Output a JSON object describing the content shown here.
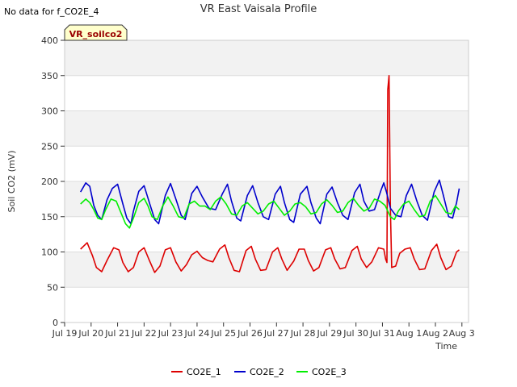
{
  "chart_data": {
    "type": "line",
    "title": "VR East Vaisala Profile",
    "top_left_note": "No data for f_CO2E_4",
    "badge_label": "VR_soilco2",
    "xlabel": "Time",
    "ylabel": "Soil CO2 (mV)",
    "x_domain": [
      0,
      15.25
    ],
    "ylim": [
      0,
      400
    ],
    "y_ticks": [
      0,
      50,
      100,
      150,
      200,
      250,
      300,
      350,
      400
    ],
    "x_ticks": [
      {
        "day": 0,
        "label": "Jul 19"
      },
      {
        "day": 1,
        "label": "Jul 20"
      },
      {
        "day": 2,
        "label": "Jul 21"
      },
      {
        "day": 3,
        "label": "Jul 22"
      },
      {
        "day": 4,
        "label": "Jul 23"
      },
      {
        "day": 5,
        "label": "Jul 24"
      },
      {
        "day": 6,
        "label": "Jul 25"
      },
      {
        "day": 7,
        "label": "Jul 26"
      },
      {
        "day": 8,
        "label": "Jul 27"
      },
      {
        "day": 9,
        "label": "Jul 28"
      },
      {
        "day": 10,
        "label": "Jul 29"
      },
      {
        "day": 11,
        "label": "Jul 30"
      },
      {
        "day": 12,
        "label": "Jul 31"
      },
      {
        "day": 13,
        "label": "Aug 1"
      },
      {
        "day": 14,
        "label": "Aug 2"
      },
      {
        "day": 15,
        "label": "Aug 3"
      }
    ],
    "grid": true,
    "legend_position": "bottom-center",
    "series": [
      {
        "name": "CO2E_1",
        "color": "#dd0000",
        "points": [
          [
            0.6,
            104
          ],
          [
            0.85,
            113
          ],
          [
            1.05,
            95
          ],
          [
            1.2,
            78
          ],
          [
            1.4,
            72
          ],
          [
            1.6,
            88
          ],
          [
            1.85,
            106
          ],
          [
            2.05,
            103
          ],
          [
            2.2,
            85
          ],
          [
            2.4,
            72
          ],
          [
            2.6,
            78
          ],
          [
            2.8,
            100
          ],
          [
            3.0,
            106
          ],
          [
            3.2,
            88
          ],
          [
            3.4,
            71
          ],
          [
            3.6,
            80
          ],
          [
            3.8,
            103
          ],
          [
            4.0,
            106
          ],
          [
            4.2,
            86
          ],
          [
            4.4,
            73
          ],
          [
            4.6,
            82
          ],
          [
            4.8,
            96
          ],
          [
            5.0,
            101
          ],
          [
            5.2,
            92
          ],
          [
            5.4,
            88
          ],
          [
            5.6,
            86
          ],
          [
            5.85,
            104
          ],
          [
            6.05,
            110
          ],
          [
            6.2,
            92
          ],
          [
            6.4,
            74
          ],
          [
            6.6,
            72
          ],
          [
            6.85,
            102
          ],
          [
            7.05,
            108
          ],
          [
            7.2,
            90
          ],
          [
            7.4,
            74
          ],
          [
            7.6,
            75
          ],
          [
            7.85,
            100
          ],
          [
            8.05,
            106
          ],
          [
            8.2,
            90
          ],
          [
            8.4,
            74
          ],
          [
            8.65,
            87
          ],
          [
            8.85,
            104
          ],
          [
            9.05,
            104
          ],
          [
            9.2,
            88
          ],
          [
            9.4,
            73
          ],
          [
            9.6,
            78
          ],
          [
            9.85,
            103
          ],
          [
            10.05,
            106
          ],
          [
            10.2,
            90
          ],
          [
            10.4,
            76
          ],
          [
            10.6,
            78
          ],
          [
            10.85,
            102
          ],
          [
            11.05,
            108
          ],
          [
            11.2,
            90
          ],
          [
            11.4,
            78
          ],
          [
            11.6,
            86
          ],
          [
            11.85,
            106
          ],
          [
            12.05,
            104
          ],
          [
            12.12,
            90
          ],
          [
            12.17,
            85
          ],
          [
            12.2,
            330
          ],
          [
            12.25,
            350
          ],
          [
            12.3,
            160
          ],
          [
            12.35,
            78
          ],
          [
            12.5,
            80
          ],
          [
            12.65,
            98
          ],
          [
            12.85,
            104
          ],
          [
            13.05,
            106
          ],
          [
            13.2,
            90
          ],
          [
            13.4,
            75
          ],
          [
            13.6,
            76
          ],
          [
            13.85,
            102
          ],
          [
            14.05,
            111
          ],
          [
            14.2,
            92
          ],
          [
            14.4,
            75
          ],
          [
            14.6,
            80
          ],
          [
            14.8,
            100
          ],
          [
            14.9,
            103
          ]
        ]
      },
      {
        "name": "CO2E_2",
        "color": "#0000cc",
        "points": [
          [
            0.6,
            185
          ],
          [
            0.8,
            198
          ],
          [
            0.95,
            193
          ],
          [
            1.1,
            166
          ],
          [
            1.25,
            152
          ],
          [
            1.4,
            146
          ],
          [
            1.6,
            174
          ],
          [
            1.8,
            190
          ],
          [
            2.0,
            196
          ],
          [
            2.2,
            168
          ],
          [
            2.35,
            148
          ],
          [
            2.5,
            140
          ],
          [
            2.6,
            158
          ],
          [
            2.8,
            186
          ],
          [
            3.0,
            194
          ],
          [
            3.2,
            170
          ],
          [
            3.4,
            146
          ],
          [
            3.55,
            140
          ],
          [
            3.8,
            180
          ],
          [
            4.0,
            197
          ],
          [
            4.2,
            175
          ],
          [
            4.4,
            152
          ],
          [
            4.55,
            146
          ],
          [
            4.8,
            183
          ],
          [
            5.0,
            193
          ],
          [
            5.2,
            178
          ],
          [
            5.45,
            162
          ],
          [
            5.7,
            160
          ],
          [
            5.95,
            182
          ],
          [
            6.15,
            196
          ],
          [
            6.3,
            172
          ],
          [
            6.5,
            148
          ],
          [
            6.65,
            144
          ],
          [
            6.9,
            180
          ],
          [
            7.1,
            194
          ],
          [
            7.3,
            170
          ],
          [
            7.5,
            150
          ],
          [
            7.7,
            146
          ],
          [
            7.95,
            182
          ],
          [
            8.15,
            193
          ],
          [
            8.3,
            170
          ],
          [
            8.5,
            146
          ],
          [
            8.65,
            142
          ],
          [
            8.9,
            182
          ],
          [
            9.15,
            193
          ],
          [
            9.3,
            170
          ],
          [
            9.5,
            148
          ],
          [
            9.65,
            140
          ],
          [
            9.9,
            182
          ],
          [
            10.1,
            192
          ],
          [
            10.3,
            170
          ],
          [
            10.5,
            152
          ],
          [
            10.7,
            146
          ],
          [
            10.95,
            184
          ],
          [
            11.15,
            196
          ],
          [
            11.3,
            172
          ],
          [
            11.5,
            158
          ],
          [
            11.7,
            160
          ],
          [
            11.95,
            188
          ],
          [
            12.05,
            198
          ],
          [
            12.15,
            185
          ],
          [
            12.3,
            162
          ],
          [
            12.5,
            152
          ],
          [
            12.7,
            150
          ],
          [
            12.9,
            180
          ],
          [
            13.1,
            196
          ],
          [
            13.3,
            172
          ],
          [
            13.5,
            152
          ],
          [
            13.7,
            145
          ],
          [
            13.95,
            185
          ],
          [
            14.15,
            202
          ],
          [
            14.3,
            180
          ],
          [
            14.5,
            150
          ],
          [
            14.65,
            148
          ],
          [
            14.8,
            170
          ],
          [
            14.9,
            190
          ]
        ]
      },
      {
        "name": "CO2E_3",
        "color": "#00ee00",
        "points": [
          [
            0.6,
            168
          ],
          [
            0.8,
            175
          ],
          [
            0.95,
            170
          ],
          [
            1.1,
            160
          ],
          [
            1.25,
            148
          ],
          [
            1.4,
            146
          ],
          [
            1.55,
            160
          ],
          [
            1.75,
            175
          ],
          [
            1.95,
            172
          ],
          [
            2.1,
            158
          ],
          [
            2.3,
            140
          ],
          [
            2.45,
            134
          ],
          [
            2.6,
            148
          ],
          [
            2.8,
            170
          ],
          [
            3.0,
            176
          ],
          [
            3.15,
            165
          ],
          [
            3.3,
            150
          ],
          [
            3.5,
            146
          ],
          [
            3.7,
            165
          ],
          [
            3.9,
            178
          ],
          [
            4.1,
            165
          ],
          [
            4.3,
            150
          ],
          [
            4.5,
            148
          ],
          [
            4.7,
            168
          ],
          [
            4.9,
            172
          ],
          [
            5.1,
            165
          ],
          [
            5.3,
            165
          ],
          [
            5.5,
            160
          ],
          [
            5.7,
            172
          ],
          [
            5.9,
            178
          ],
          [
            6.1,
            168
          ],
          [
            6.3,
            154
          ],
          [
            6.5,
            152
          ],
          [
            6.7,
            165
          ],
          [
            6.9,
            170
          ],
          [
            7.1,
            162
          ],
          [
            7.3,
            154
          ],
          [
            7.5,
            158
          ],
          [
            7.7,
            168
          ],
          [
            7.9,
            172
          ],
          [
            8.1,
            162
          ],
          [
            8.3,
            152
          ],
          [
            8.5,
            158
          ],
          [
            8.7,
            168
          ],
          [
            8.9,
            170
          ],
          [
            9.1,
            164
          ],
          [
            9.3,
            154
          ],
          [
            9.5,
            156
          ],
          [
            9.7,
            168
          ],
          [
            9.9,
            174
          ],
          [
            10.1,
            166
          ],
          [
            10.3,
            156
          ],
          [
            10.5,
            158
          ],
          [
            10.7,
            170
          ],
          [
            10.9,
            176
          ],
          [
            11.1,
            166
          ],
          [
            11.3,
            158
          ],
          [
            11.5,
            162
          ],
          [
            11.7,
            175
          ],
          [
            11.9,
            172
          ],
          [
            12.1,
            166
          ],
          [
            12.3,
            150
          ],
          [
            12.45,
            146
          ],
          [
            12.6,
            158
          ],
          [
            12.8,
            168
          ],
          [
            13.0,
            172
          ],
          [
            13.2,
            160
          ],
          [
            13.4,
            150
          ],
          [
            13.6,
            152
          ],
          [
            13.8,
            172
          ],
          [
            14.0,
            180
          ],
          [
            14.2,
            168
          ],
          [
            14.4,
            156
          ],
          [
            14.6,
            154
          ],
          [
            14.75,
            165
          ],
          [
            14.9,
            160
          ]
        ]
      }
    ]
  }
}
